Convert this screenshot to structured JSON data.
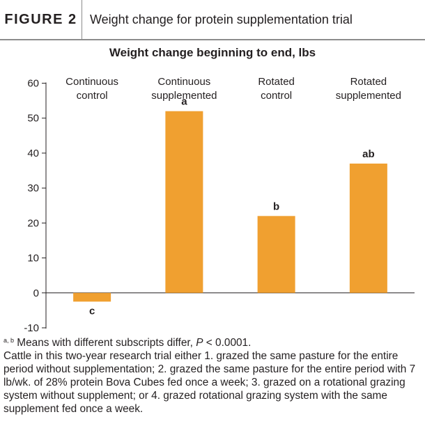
{
  "figure": {
    "label": "FIGURE 2",
    "title": "Weight change for protein supplementation trial"
  },
  "chart_data": {
    "type": "bar",
    "title": "Weight change beginning to end, lbs",
    "categories": [
      [
        "Continuous",
        "control"
      ],
      [
        "Continuous",
        "supplemented"
      ],
      [
        "Rotated",
        "control"
      ],
      [
        "Rotated",
        "supplemented"
      ]
    ],
    "values": [
      -2.5,
      52,
      22,
      37
    ],
    "bar_labels": [
      "c",
      "a",
      "b",
      "ab"
    ],
    "ylim": [
      -12,
      62
    ],
    "yticks": [
      60,
      50,
      40,
      30,
      20,
      10,
      0,
      -10
    ],
    "ytick_labels": [
      "60",
      "50",
      "40",
      "30",
      "20",
      "10",
      "0",
      "-10"
    ],
    "bar_color": "#f0a030",
    "grid": false
  },
  "footnote": {
    "superscripts": "a, b",
    "line1_text": "Means with different subscripts differ,",
    "p_symbol": "P",
    "p_value": "< 0.0001.",
    "body": "Cattle in this two-year research trial either 1. grazed the same pasture for the entire period without supplementation; 2. grazed the same pasture for the entire period with 7 lb/wk. of 28% protein Bova Cubes fed once a week; 3. grazed on a rotational grazing system without supplement; or 4. grazed rotational grazing system with the same supplement fed once a week."
  }
}
